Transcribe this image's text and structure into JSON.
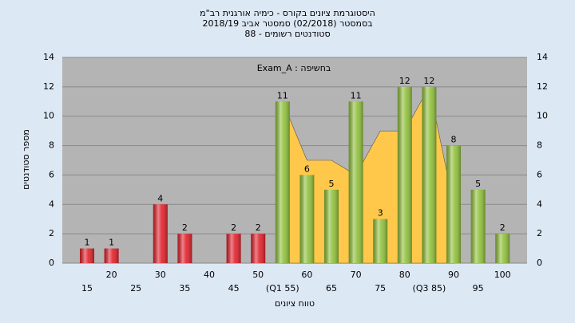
{
  "chart_data": {
    "type": "bar",
    "title": [
      "היסטוגרמת ציונים בקורס - כימיה אורגנית רב\"מ",
      "בסמסטר  (02/2018)  סמסטר אביב 2018/19",
      "סטודנטים רשומים - 88"
    ],
    "annotation": "בחשיפה : Exam_A",
    "x_label": "טווח ציונים",
    "y_label": "מספר סטודנטים",
    "categories": [
      "15",
      "20",
      "25",
      "30",
      "35",
      "40",
      "45",
      "50",
      "(Q1 55)",
      "60",
      "65",
      "70",
      "75",
      "80",
      "(Q3 85)",
      "90",
      "95",
      "100"
    ],
    "values": [
      1,
      1,
      0,
      4,
      2,
      0,
      2,
      2,
      11,
      6,
      5,
      11,
      3,
      12,
      12,
      8,
      5,
      2
    ],
    "colors": [
      "#e0202a",
      "#e0202a",
      "#e0202a",
      "#e0202a",
      "#e0202a",
      "#e0202a",
      "#e0202a",
      "#e0202a",
      "#8fbf3a",
      "#8fbf3a",
      "#8fbf3a",
      "#8fbf3a",
      "#8fbf3a",
      "#8fbf3a",
      "#8fbf3a",
      "#8fbf3a",
      "#8fbf3a",
      "#8fbf3a"
    ],
    "area": {
      "color": "#ffc84a",
      "values": [
        null,
        null,
        null,
        null,
        null,
        null,
        null,
        null,
        11,
        7,
        7,
        6,
        9,
        9,
        12,
        4,
        null,
        null
      ]
    },
    "ylim": [
      0,
      14
    ],
    "yticks": [
      0,
      2,
      4,
      6,
      8,
      10,
      12,
      14
    ],
    "grid": true
  }
}
